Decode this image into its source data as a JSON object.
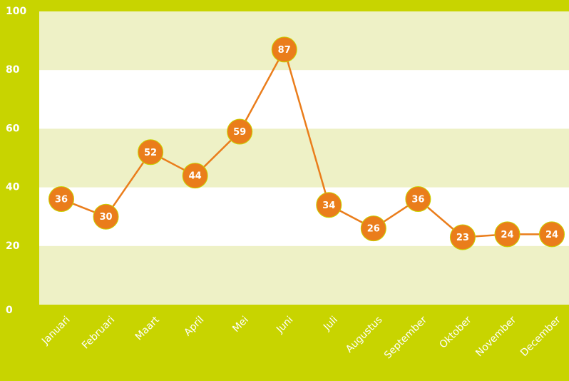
{
  "chart_data": {
    "type": "line",
    "categories": [
      "Januari",
      "Februari",
      "Maart",
      "April",
      "Mei",
      "Juni",
      "Juli",
      "Augustus",
      "September",
      "Oktober",
      "November",
      "December"
    ],
    "values": [
      36,
      30,
      52,
      44,
      59,
      87,
      34,
      26,
      36,
      23,
      24,
      24
    ],
    "color": "#ea7d1b",
    "ylim": [
      0,
      100
    ],
    "yticks": [
      0,
      20,
      40,
      60,
      80,
      100
    ],
    "grid": true
  }
}
